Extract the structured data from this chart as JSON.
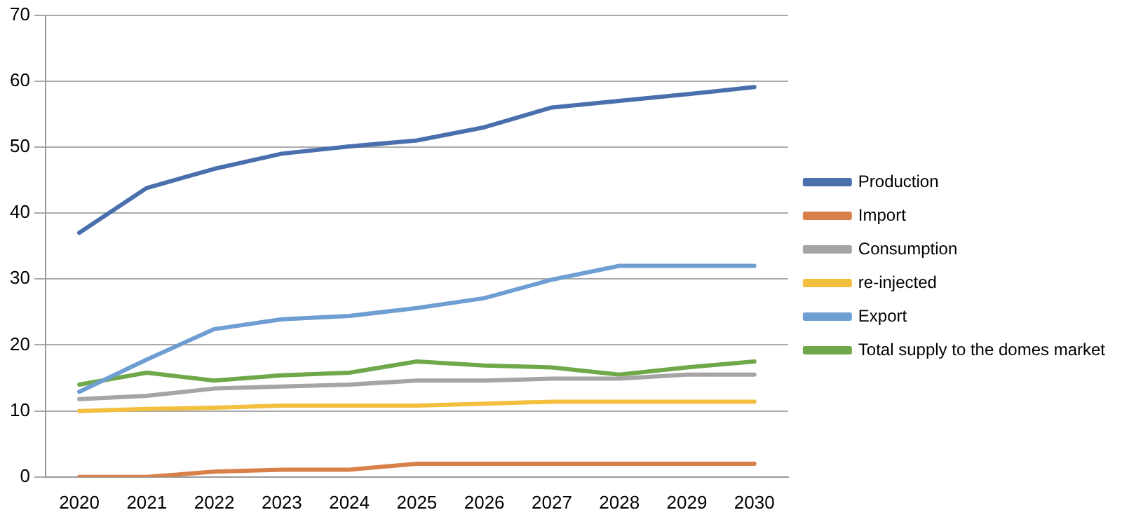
{
  "chart_data": {
    "type": "line",
    "categories": [
      "2020",
      "2021",
      "2022",
      "2023",
      "2024",
      "2025",
      "2026",
      "2027",
      "2028",
      "2029",
      "2030"
    ],
    "series": [
      {
        "name": "Production",
        "color": "#4a6fad",
        "values": [
          37,
          43.8,
          46.7,
          49,
          50.1,
          51,
          53,
          56,
          57,
          58,
          59.1
        ]
      },
      {
        "name": "Import",
        "color": "#d9804a",
        "values": [
          0,
          0,
          0.8,
          1.1,
          1.1,
          2,
          2,
          2,
          2,
          2,
          2
        ]
      },
      {
        "name": "Consumption",
        "color": "#a5a5a5",
        "values": [
          11.8,
          12.3,
          13.4,
          13.7,
          14,
          14.6,
          14.6,
          14.9,
          14.9,
          15.5,
          15.5
        ]
      },
      {
        "name": "re-injected",
        "color": "#f2bf3f",
        "values": [
          10,
          10.3,
          10.5,
          10.8,
          10.8,
          10.8,
          11.1,
          11.4,
          11.4,
          11.4,
          11.4
        ]
      },
      {
        "name": "Export",
        "color": "#6f9fd2",
        "values": [
          12.9,
          17.8,
          22.4,
          23.9,
          24.4,
          25.6,
          27.1,
          29.9,
          32,
          32,
          32
        ]
      },
      {
        "name": "Total supply to the domes market",
        "color": "#6fa84a",
        "values": [
          14,
          15.8,
          14.6,
          15.4,
          15.8,
          17.5,
          16.9,
          16.6,
          15.5,
          16.6,
          17.5
        ]
      }
    ],
    "ylim": [
      0,
      70
    ],
    "yticks": [
      0,
      10,
      20,
      30,
      40,
      50,
      60,
      70
    ],
    "grid": "y",
    "legend": "right",
    "marker": "none",
    "line_style": "solid"
  }
}
